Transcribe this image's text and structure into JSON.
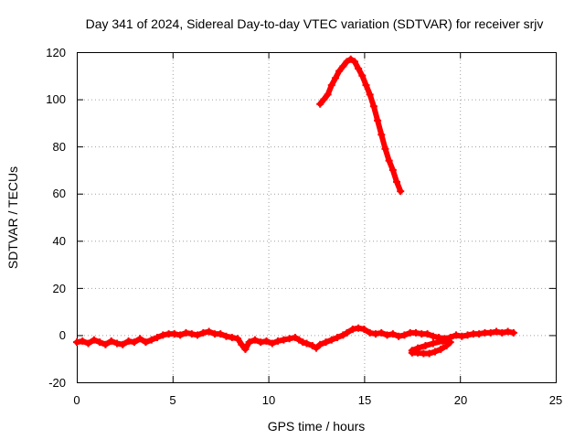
{
  "chart_data": {
    "type": "scatter",
    "title": "Day 341 of 2024, Sidereal Day-to-day VTEC variation (SDTVAR) for receiver srjv",
    "xlabel": "GPS time / hours",
    "ylabel": "SDTVAR / TECUs",
    "xlim": [
      0,
      25
    ],
    "ylim": [
      -20,
      120
    ],
    "xticks": [
      "0",
      "5",
      "10",
      "15",
      "20",
      "25"
    ],
    "yticks": [
      "-20",
      "0",
      "20",
      "40",
      "60",
      "80",
      "100",
      "120"
    ],
    "grid": true,
    "marker": "plus",
    "series_color": "#ff0000",
    "series": [
      {
        "points": [
          [
            0.0,
            -3
          ],
          [
            0.3,
            -2.5
          ],
          [
            0.6,
            -3.5
          ],
          [
            0.9,
            -2
          ],
          [
            1.2,
            -3
          ],
          [
            1.5,
            -4
          ],
          [
            1.8,
            -2.5
          ],
          [
            2.1,
            -3.5
          ],
          [
            2.4,
            -4
          ],
          [
            2.7,
            -2.5
          ],
          [
            3.0,
            -3
          ],
          [
            3.3,
            -1.5
          ],
          [
            3.6,
            -3
          ],
          [
            3.9,
            -2
          ],
          [
            4.2,
            -1
          ],
          [
            4.5,
            0
          ],
          [
            4.8,
            0.5
          ],
          [
            5.1,
            0.5
          ],
          [
            5.4,
            0
          ],
          [
            5.7,
            1
          ],
          [
            6.0,
            0.5
          ],
          [
            6.3,
            0
          ],
          [
            6.6,
            1
          ],
          [
            6.9,
            1.5
          ],
          [
            7.2,
            0.5
          ],
          [
            7.5,
            0.5
          ],
          [
            7.8,
            -0.5
          ],
          [
            8.1,
            -1
          ],
          [
            8.4,
            -1.5
          ],
          [
            8.6,
            -4
          ],
          [
            8.8,
            -6
          ],
          [
            9.0,
            -3
          ],
          [
            9.3,
            -2
          ],
          [
            9.6,
            -3
          ],
          [
            9.9,
            -2.5
          ],
          [
            10.2,
            -3.5
          ],
          [
            10.5,
            -2.5
          ],
          [
            10.8,
            -2
          ],
          [
            11.1,
            -1.5
          ],
          [
            11.4,
            -1
          ],
          [
            11.6,
            -2
          ],
          [
            11.8,
            -3
          ],
          [
            12.0,
            -3.5
          ],
          [
            12.3,
            -4.5
          ],
          [
            12.5,
            -5.5
          ],
          [
            12.7,
            -4
          ],
          [
            13.0,
            -3
          ],
          [
            13.3,
            -2
          ],
          [
            13.6,
            -1
          ],
          [
            13.9,
            0
          ],
          [
            14.1,
            1
          ],
          [
            14.4,
            2.5
          ],
          [
            14.7,
            3
          ],
          [
            15.0,
            2.5
          ],
          [
            15.3,
            1
          ],
          [
            15.6,
            0.5
          ],
          [
            15.9,
            1
          ],
          [
            16.2,
            0
          ],
          [
            16.5,
            0.5
          ],
          [
            16.8,
            -0.5
          ],
          [
            17.1,
            0
          ],
          [
            17.4,
            1
          ],
          [
            17.7,
            1
          ],
          [
            18.0,
            0.5
          ],
          [
            18.3,
            0.5
          ],
          [
            18.6,
            -0.5
          ],
          [
            18.9,
            -1
          ],
          [
            19.2,
            -1.5
          ],
          [
            19.5,
            -1
          ],
          [
            19.8,
            0
          ],
          [
            20.1,
            -0.5
          ],
          [
            20.4,
            0
          ],
          [
            20.7,
            0.5
          ],
          [
            21.0,
            0.5
          ],
          [
            21.3,
            1
          ],
          [
            21.6,
            1
          ],
          [
            21.9,
            1.5
          ],
          [
            22.2,
            1
          ],
          [
            22.5,
            1.5
          ],
          [
            22.8,
            1
          ]
        ]
      },
      {
        "points": [
          [
            17.5,
            -7.5
          ],
          [
            17.8,
            -7.5
          ],
          [
            18.1,
            -7.8
          ],
          [
            18.4,
            -7.8
          ],
          [
            18.7,
            -7
          ],
          [
            19.0,
            -6
          ],
          [
            19.3,
            -4.5
          ],
          [
            19.5,
            -3
          ],
          [
            19.1,
            -2.5
          ],
          [
            18.6,
            -3.5
          ],
          [
            18.2,
            -4.5
          ],
          [
            17.8,
            -5.5
          ],
          [
            17.5,
            -6.5
          ]
        ]
      },
      {
        "points": [
          [
            12.7,
            98
          ],
          [
            12.9,
            100
          ],
          [
            13.1,
            102
          ],
          [
            13.3,
            106
          ],
          [
            13.5,
            109
          ],
          [
            13.7,
            112
          ],
          [
            13.9,
            114
          ],
          [
            14.1,
            116
          ],
          [
            14.3,
            117
          ],
          [
            14.5,
            116
          ],
          [
            14.7,
            113
          ],
          [
            14.9,
            110
          ],
          [
            15.1,
            106
          ],
          [
            15.3,
            102
          ],
          [
            15.5,
            97
          ],
          [
            15.7,
            91
          ],
          [
            15.9,
            85
          ],
          [
            16.1,
            79
          ],
          [
            16.3,
            74
          ],
          [
            16.5,
            70
          ],
          [
            16.7,
            65
          ],
          [
            16.9,
            61
          ]
        ]
      }
    ]
  }
}
